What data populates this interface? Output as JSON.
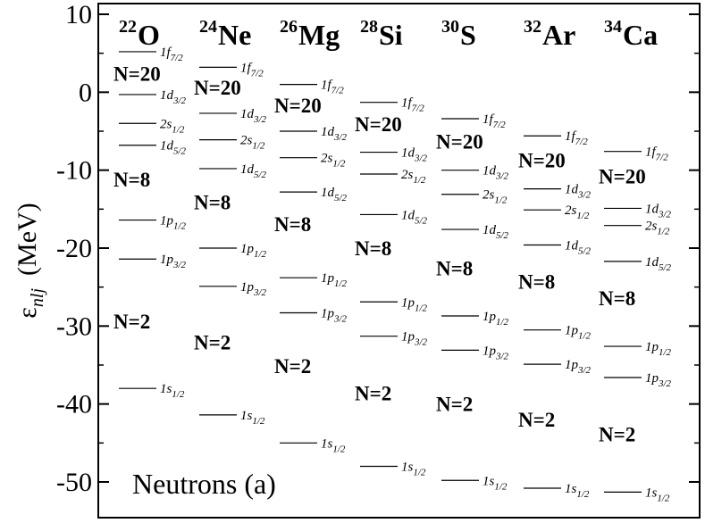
{
  "chart_data": {
    "type": "level_scheme",
    "title": "",
    "xlabel": "",
    "ylabel": {
      "symbol": "ε",
      "subscript": "nlj",
      "unit": "(MeV)"
    },
    "ylim": [
      -55,
      10
    ],
    "yticks": [
      10,
      0,
      -10,
      -20,
      -30,
      -40,
      -50
    ],
    "ytick_labels": [
      "10",
      "0",
      "-10",
      "-20",
      "-30",
      "-40",
      "-50"
    ],
    "annotation": "Neutrons (a)",
    "orbital_order": [
      "1f7/2",
      "1d3/2",
      "2s1/2",
      "1d5/2",
      "1p1/2",
      "1p3/2",
      "1s1/2"
    ],
    "orbital_labels": {
      "1f7/2": {
        "base": "1f",
        "sub": "7/2"
      },
      "1d3/2": {
        "base": "1d",
        "sub": "3/2"
      },
      "2s1/2": {
        "base": "2s",
        "sub": "1/2"
      },
      "1d5/2": {
        "base": "1d",
        "sub": "5/2"
      },
      "1p1/2": {
        "base": "1p",
        "sub": "1/2"
      },
      "1p3/2": {
        "base": "1p",
        "sub": "3/2"
      },
      "1s1/2": {
        "base": "1s",
        "sub": "1/2"
      }
    },
    "nuclei": [
      {
        "mass": "22",
        "symbol": "O",
        "levels": {
          "1f7/2": 5.2,
          "1d3/2": -0.3,
          "2s1/2": -4.0,
          "1d5/2": -6.8,
          "1p1/2": -16.4,
          "1p3/2": -21.4,
          "1s1/2": -38.0
        },
        "magic": [
          {
            "label": "N=20",
            "y": 2.4
          },
          {
            "label": "N=8",
            "y": -11.2
          },
          {
            "label": "N=2",
            "y": -29.4
          }
        ]
      },
      {
        "mass": "24",
        "symbol": "Ne",
        "levels": {
          "1f7/2": 3.2,
          "1d3/2": -2.7,
          "2s1/2": -6.1,
          "1d5/2": -9.8,
          "1p1/2": -20.0,
          "1p3/2": -24.9,
          "1s1/2": -41.4
        },
        "magic": [
          {
            "label": "N=20",
            "y": 0.6
          },
          {
            "label": "N=8",
            "y": -14.1
          },
          {
            "label": "N=2",
            "y": -32.1
          }
        ]
      },
      {
        "mass": "26",
        "symbol": "Mg",
        "levels": {
          "1f7/2": 1.0,
          "1d3/2": -5.0,
          "2s1/2": -8.4,
          "1d5/2": -12.8,
          "1p1/2": -23.8,
          "1p3/2": -28.3,
          "1s1/2": -45.0
        },
        "magic": [
          {
            "label": "N=20",
            "y": -1.7
          },
          {
            "label": "N=8",
            "y": -16.9
          },
          {
            "label": "N=2",
            "y": -35.1
          }
        ]
      },
      {
        "mass": "28",
        "symbol": "Si",
        "levels": {
          "1f7/2": -1.3,
          "1d3/2": -7.7,
          "2s1/2": -10.5,
          "1d5/2": -15.7,
          "1p1/2": -26.9,
          "1p3/2": -31.3,
          "1s1/2": -48.0
        },
        "magic": [
          {
            "label": "N=20",
            "y": -4.1
          },
          {
            "label": "N=8",
            "y": -20.0
          },
          {
            "label": "N=2",
            "y": -38.6
          }
        ]
      },
      {
        "mass": "30",
        "symbol": "S",
        "levels": {
          "1f7/2": -3.4,
          "1d3/2": -10.0,
          "2s1/2": -13.1,
          "1d5/2": -17.6,
          "1p1/2": -28.7,
          "1p3/2": -33.1,
          "1s1/2": -49.8
        },
        "magic": [
          {
            "label": "N=20",
            "y": -6.3
          },
          {
            "label": "N=8",
            "y": -22.6
          },
          {
            "label": "N=2",
            "y": -40.0
          }
        ]
      },
      {
        "mass": "32",
        "symbol": "Ar",
        "levels": {
          "1f7/2": -5.6,
          "1d3/2": -12.4,
          "2s1/2": -15.1,
          "1d5/2": -19.6,
          "1p1/2": -30.5,
          "1p3/2": -34.9,
          "1s1/2": -50.8
        },
        "magic": [
          {
            "label": "N=20",
            "y": -8.7
          },
          {
            "label": "N=8",
            "y": -24.3
          },
          {
            "label": "N=2",
            "y": -42.0
          }
        ]
      },
      {
        "mass": "34",
        "symbol": "Ca",
        "levels": {
          "1f7/2": -7.6,
          "1d3/2": -14.9,
          "2s1/2": -17.1,
          "1d5/2": -21.7,
          "1p1/2": -32.6,
          "1p3/2": -36.6,
          "1s1/2": -51.3
        },
        "magic": [
          {
            "label": "N=20",
            "y": -10.8
          },
          {
            "label": "N=8",
            "y": -26.4
          },
          {
            "label": "N=2",
            "y": -43.9
          }
        ]
      }
    ]
  }
}
